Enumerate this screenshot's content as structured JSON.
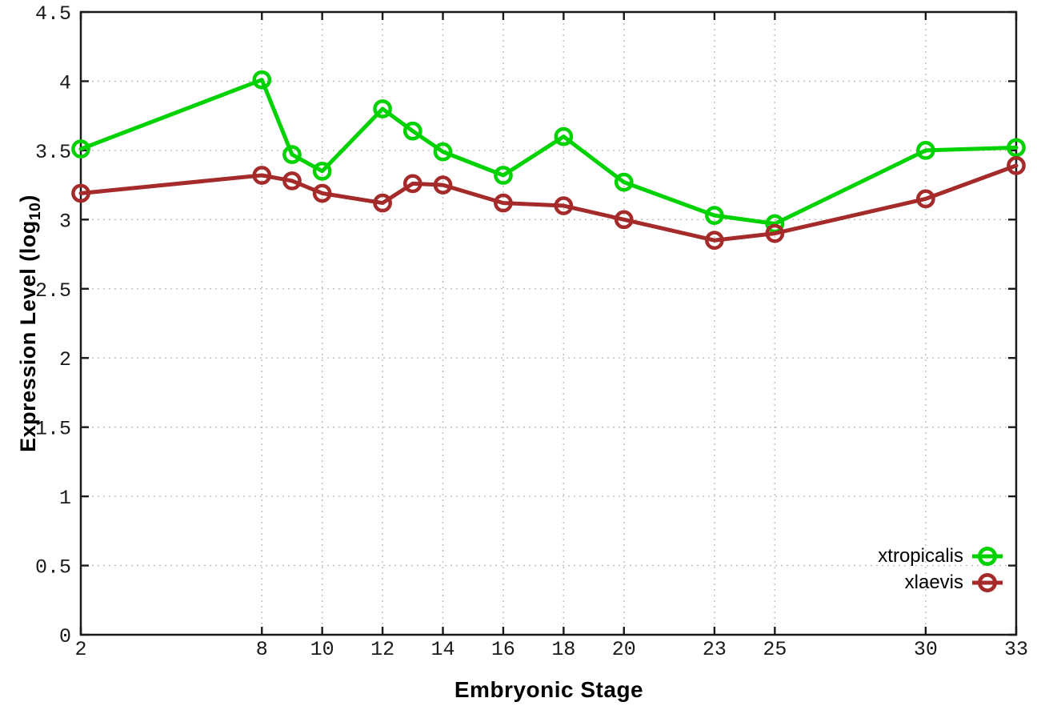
{
  "chart_data": {
    "type": "line",
    "title": "",
    "xlabel": "Embryonic Stage",
    "ylabel": "Expression Level (log10)",
    "ylabel_parts": {
      "main": "Expression Level (log",
      "sub": "10",
      "close": ")"
    },
    "x": [
      2,
      8,
      9,
      10,
      12,
      13,
      14,
      16,
      18,
      20,
      23,
      25,
      30,
      33
    ],
    "series": [
      {
        "name": "xtropicalis",
        "color": "#00d200",
        "values": [
          3.51,
          4.01,
          3.47,
          3.35,
          3.8,
          3.64,
          3.49,
          3.32,
          3.6,
          3.27,
          3.03,
          2.97,
          3.5,
          3.52
        ]
      },
      {
        "name": "xlaevis",
        "color": "#a52a2a",
        "values": [
          3.19,
          3.32,
          3.28,
          3.19,
          3.12,
          3.26,
          3.25,
          3.12,
          3.1,
          3.0,
          2.85,
          2.9,
          3.15,
          3.39
        ]
      }
    ],
    "xlim": [
      2,
      33
    ],
    "ylim": [
      0,
      4.5
    ],
    "xtick_labels": [
      "2",
      "8",
      "10",
      "12",
      "14",
      "16",
      "18",
      "20",
      "23",
      "25",
      "30",
      "33"
    ],
    "xticks": [
      2,
      8,
      10,
      12,
      14,
      16,
      18,
      20,
      23,
      25,
      30,
      33
    ],
    "ytick_labels": [
      "0",
      "0.5",
      "1",
      "1.5",
      "2",
      "2.5",
      "3",
      "3.5",
      "4",
      "4.5"
    ],
    "yticks": [
      0,
      0.5,
      1,
      1.5,
      2,
      2.5,
      3,
      3.5,
      4,
      4.5
    ],
    "grid": true,
    "legend_position": "inside-right-lower",
    "axis_color": "#1a1a1a",
    "grid_color": "#bdbdbd",
    "tick_label_color": "#1a1a1a"
  }
}
